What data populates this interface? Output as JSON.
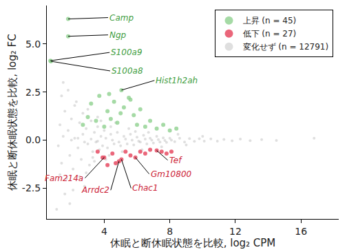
{
  "chart_data": {
    "type": "scatter",
    "x_label": "休眠と断休眠状態を比較, log₂ CPM",
    "y_label": "休眠と断休眠状態を比較, log₂ FC",
    "xlim": [
      0.5,
      18.3
    ],
    "ylim": [
      -4.1,
      7.0
    ],
    "xticks": [
      4,
      8,
      12,
      16
    ],
    "yticks": [
      {
        "value": 5,
        "label": "5.0"
      },
      {
        "value": 2.5,
        "label": "2.5"
      },
      {
        "value": 0,
        "label": "0.0"
      },
      -2.5
    ],
    "grid": false,
    "legend": "top right",
    "marker": "circle",
    "series": [
      {
        "name": "上昇 (n = 45)",
        "color": "#8fd18f",
        "x": [
          2.7,
          3.0,
          3.2,
          3.5,
          3.7,
          4.0,
          4.2,
          4.4,
          4.6,
          4.8,
          5.0,
          5.2,
          5.5,
          5.8,
          6.0,
          6.2,
          6.5,
          6.8,
          7.2,
          7.6,
          8.0,
          8.4,
          5.6,
          4.3,
          1.8,
          1.8,
          0.72,
          0.75,
          5.05
        ],
        "values": [
          0.8,
          1.2,
          1.9,
          1.0,
          2.3,
          0.7,
          1.5,
          1.1,
          2.0,
          0.9,
          1.4,
          1.7,
          2.2,
          1.3,
          0.8,
          1.6,
          0.7,
          1.0,
          0.6,
          0.8,
          0.5,
          0.6,
          2.1,
          2.4,
          6.3,
          5.4,
          4.13,
          4.1,
          2.6
        ]
      },
      {
        "name": "低下 (n = 27)",
        "color": "#e8556b",
        "x": [
          3.6,
          3.9,
          4.0,
          4.9,
          5.05,
          5.9,
          7.2,
          4.5,
          5.3,
          5.6,
          6.2,
          6.5,
          6.8,
          7.5,
          7.8,
          8.1,
          4.2,
          4.7
        ],
        "values": [
          -0.6,
          -0.9,
          -0.9,
          -1.1,
          -1.0,
          -0.9,
          -0.54,
          -0.7,
          -0.6,
          -0.8,
          -0.6,
          -0.7,
          -0.5,
          -0.6,
          -0.7,
          -0.6,
          -1.3,
          -1.2
        ]
      },
      {
        "name": "変化せず (n = 12791)",
        "color": "#808080",
        "x": [
          1.2,
          1.3,
          1.4,
          1.5,
          1.6,
          1.7,
          1.8,
          1.9,
          2.0,
          2.1,
          2.2,
          2.3,
          2.4,
          2.5,
          2.6,
          2.7,
          2.8,
          2.9,
          3.0,
          1.4,
          1.6,
          1.1,
          1.9,
          2.2,
          2.5,
          2.7,
          3.1,
          3.2,
          3.3,
          3.4,
          3.5,
          3.6,
          3.7,
          3.8,
          3.9,
          4.0,
          4.2,
          4.4,
          4.6,
          4.8,
          5.0,
          5.2,
          5.4,
          5.6,
          5.8,
          6.0,
          6.2,
          6.4,
          6.6,
          6.8,
          7.0,
          7.2,
          7.4,
          7.6,
          7.8,
          8.0,
          8.3,
          8.6,
          8.9,
          9.2,
          9.5,
          9.8,
          10.1,
          10.5,
          10.9,
          11.3,
          11.8,
          12.3,
          12.9,
          13.6,
          14.5,
          16.8,
          2.0,
          2.4,
          2.8,
          3.2,
          3.6,
          4.1,
          4.5,
          4.9,
          5.3,
          5.7,
          6.1,
          6.5,
          6.9,
          7.3,
          7.7,
          8.1,
          3.0,
          3.4,
          3.8,
          4.3,
          4.7,
          5.1,
          5.5,
          6.3,
          3.6,
          2.9,
          4.1,
          1.3,
          1.5,
          2.1,
          1.8,
          6.7,
          7.5,
          8.5,
          9.0,
          10.0,
          5.9,
          4.4,
          3.3
        ],
        "values": [
          -0.3,
          0.8,
          -1.2,
          0.2,
          1.5,
          -2.0,
          0.5,
          -0.8,
          1.1,
          -1.5,
          0.1,
          2.0,
          -0.4,
          0.9,
          -1.0,
          0.3,
          -2.4,
          0.6,
          -0.2,
          2.3,
          -2.8,
          -3.6,
          -3.3,
          1.8,
          -1.9,
          1.4,
          -1.3,
          1.0,
          -0.6,
          0.4,
          -0.1,
          0.7,
          -0.5,
          0.2,
          -0.3,
          0.5,
          -0.4,
          0.3,
          -0.2,
          0.4,
          -0.3,
          0.2,
          -0.2,
          0.3,
          -0.25,
          0.15,
          -0.1,
          0.25,
          -0.2,
          0.1,
          -0.15,
          0.2,
          -0.1,
          0.12,
          -0.12,
          0.1,
          -0.08,
          0.1,
          -0.1,
          0.08,
          -0.06,
          0.07,
          -0.05,
          0.06,
          -0.05,
          0.04,
          -0.04,
          0.05,
          -0.03,
          0.03,
          -0.02,
          0.1,
          0.0,
          0.1,
          -0.1,
          0.05,
          -0.05,
          0.1,
          0.0,
          -0.1,
          0.05,
          0.0,
          -0.05,
          0.05,
          0.0,
          0.03,
          -0.02,
          0.0,
          1.6,
          -1.1,
          1.0,
          -0.8,
          0.9,
          -0.6,
          0.6,
          -0.5,
          1.2,
          -1.7,
          -1.0,
          -1.8,
          3.0,
          -2.6,
          2.6,
          0.4,
          -0.35,
          0.3,
          -0.25,
          0.2,
          0.45,
          0.7,
          -0.9
        ]
      }
    ],
    "annotations": [
      {
        "text": "Camp",
        "x": 1.8,
        "y": 6.3,
        "color": "#3f9e3f"
      },
      {
        "text": "Ngp",
        "x": 1.8,
        "y": 5.4,
        "color": "#3f9e3f"
      },
      {
        "text": "S100a9",
        "x": 0.72,
        "y": 4.13,
        "color": "#3f9e3f"
      },
      {
        "text": "S100a8",
        "x": 0.75,
        "y": 4.1,
        "color": "#3f9e3f"
      },
      {
        "text": "Hist1h2ah",
        "x": 5.05,
        "y": 2.6,
        "color": "#3f9e3f"
      },
      {
        "text": "Tef",
        "x": 7.2,
        "y": -0.54,
        "color": "#cc2236"
      },
      {
        "text": "Gm10800",
        "x": 5.9,
        "y": -0.9,
        "color": "#cc2236"
      },
      {
        "text": "Chac1",
        "x": 5.05,
        "y": -1.0,
        "color": "#cc2236"
      },
      {
        "text": "Arrdc2",
        "x": 4.9,
        "y": -1.1,
        "color": "#cc2236"
      },
      {
        "text": "Fam214a",
        "x": 4.0,
        "y": -0.9,
        "color": "#cc2236"
      }
    ]
  }
}
